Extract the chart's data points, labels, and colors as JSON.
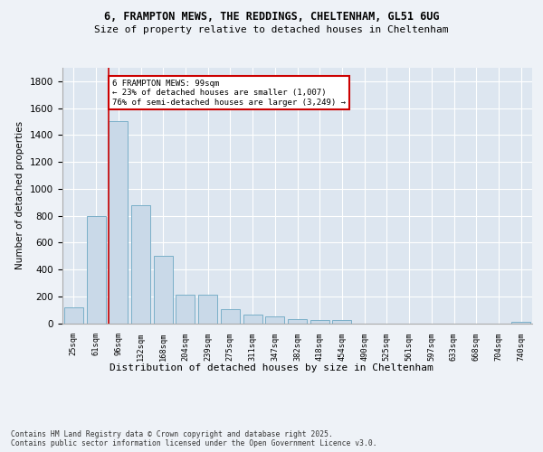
{
  "title_line1": "6, FRAMPTON MEWS, THE REDDINGS, CHELTENHAM, GL51 6UG",
  "title_line2": "Size of property relative to detached houses in Cheltenham",
  "xlabel": "Distribution of detached houses by size in Cheltenham",
  "ylabel": "Number of detached properties",
  "footnote": "Contains HM Land Registry data © Crown copyright and database right 2025.\nContains public sector information licensed under the Open Government Licence v3.0.",
  "bar_color": "#c9d9e8",
  "bar_edge_color": "#7aafc8",
  "highlight_line_color": "#cc0000",
  "annotation_box_color": "#cc0000",
  "annotation_text": "6 FRAMPTON MEWS: 99sqm\n← 23% of detached houses are smaller (1,007)\n76% of semi-detached houses are larger (3,249) →",
  "property_size_sqm": 99,
  "categories": [
    "25sqm",
    "61sqm",
    "96sqm",
    "132sqm",
    "168sqm",
    "204sqm",
    "239sqm",
    "275sqm",
    "311sqm",
    "347sqm",
    "382sqm",
    "418sqm",
    "454sqm",
    "490sqm",
    "525sqm",
    "561sqm",
    "597sqm",
    "633sqm",
    "668sqm",
    "704sqm",
    "740sqm"
  ],
  "values": [
    120,
    800,
    1500,
    880,
    500,
    210,
    210,
    105,
    65,
    48,
    33,
    25,
    25,
    0,
    0,
    0,
    0,
    0,
    0,
    0,
    10
  ],
  "ylim": [
    0,
    1900
  ],
  "yticks": [
    0,
    200,
    400,
    600,
    800,
    1000,
    1200,
    1400,
    1600,
    1800
  ],
  "highlight_bar_index": 2,
  "background_color": "#eef2f7",
  "plot_bg_color": "#dde6f0"
}
